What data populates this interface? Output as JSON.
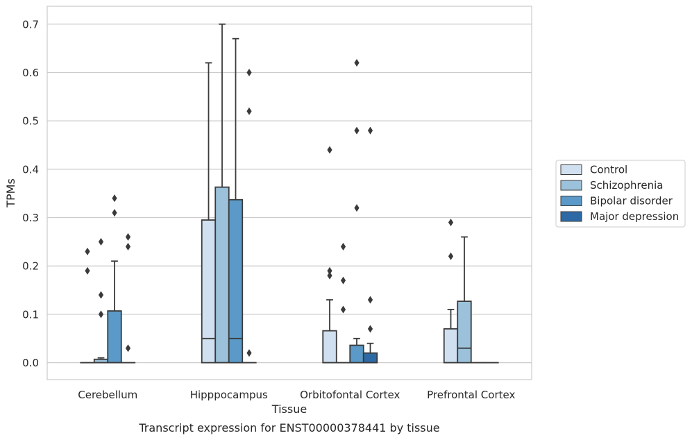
{
  "caption": "Transcript expression for ENST00000378441 by tissue",
  "chart_data": {
    "type": "box",
    "xlabel": "Tissue",
    "ylabel": "TPMs",
    "ylim": [
      -0.035,
      0.737
    ],
    "yticks": [
      0.0,
      0.1,
      0.2,
      0.3,
      0.4,
      0.5,
      0.6,
      0.7
    ],
    "ytick_labels": [
      "0.0",
      "0.1",
      "0.2",
      "0.3",
      "0.4",
      "0.5",
      "0.6",
      "0.7"
    ],
    "grid": "horizontal",
    "legend_position": "right",
    "categories": [
      "Cerebellum",
      "Hipppocampus",
      "Orbitofontal Cortex",
      "Prefrontal Cortex"
    ],
    "series": [
      {
        "name": "Control",
        "color": "#d0e0f0",
        "boxes": [
          {
            "q1": 0,
            "median": 0,
            "q3": 0,
            "whisker_low": 0,
            "whisker_high": 0,
            "outliers": [
              0.19,
              0.23
            ]
          },
          {
            "q1": 0,
            "median": 0.05,
            "q3": 0.295,
            "whisker_low": 0,
            "whisker_high": 0.62,
            "outliers": []
          },
          {
            "q1": 0,
            "median": 0,
            "q3": 0.066,
            "whisker_low": 0,
            "whisker_high": 0.13,
            "outliers": [
              0.18,
              0.19,
              0.44
            ]
          },
          {
            "q1": 0,
            "median": 0,
            "q3": 0.07,
            "whisker_low": 0,
            "whisker_high": 0.11,
            "outliers": [
              0.22,
              0.29
            ]
          }
        ]
      },
      {
        "name": "Schizophrenia",
        "color": "#9cc2db",
        "boxes": [
          {
            "q1": 0,
            "median": 0,
            "q3": 0.007,
            "whisker_low": 0,
            "whisker_high": 0.01,
            "outliers": [
              0.1,
              0.14,
              0.25
            ]
          },
          {
            "q1": 0,
            "median": 0,
            "q3": 0.363,
            "whisker_low": 0,
            "whisker_high": 0.7,
            "outliers": []
          },
          {
            "q1": 0,
            "median": 0,
            "q3": 0,
            "whisker_low": 0,
            "whisker_high": 0,
            "outliers": [
              0.11,
              0.17,
              0.24
            ]
          },
          {
            "q1": 0,
            "median": 0.03,
            "q3": 0.127,
            "whisker_low": 0,
            "whisker_high": 0.26,
            "outliers": []
          }
        ]
      },
      {
        "name": "Bipolar disorder",
        "color": "#5b9ac8",
        "boxes": [
          {
            "q1": 0,
            "median": 0,
            "q3": 0.107,
            "whisker_low": 0,
            "whisker_high": 0.21,
            "outliers": [
              0.31,
              0.34
            ]
          },
          {
            "q1": 0,
            "median": 0.05,
            "q3": 0.337,
            "whisker_low": 0,
            "whisker_high": 0.67,
            "outliers": []
          },
          {
            "q1": 0,
            "median": 0,
            "q3": 0.036,
            "whisker_low": 0,
            "whisker_high": 0.05,
            "outliers": [
              0.32,
              0.48,
              0.62
            ]
          },
          {
            "q1": 0,
            "median": 0,
            "q3": 0,
            "whisker_low": 0,
            "whisker_high": 0,
            "outliers": []
          }
        ]
      },
      {
        "name": "Major depression",
        "color": "#2d6aa5",
        "boxes": [
          {
            "q1": 0,
            "median": 0,
            "q3": 0,
            "whisker_low": 0,
            "whisker_high": 0,
            "outliers": [
              0.03,
              0.24,
              0.26
            ]
          },
          {
            "q1": 0,
            "median": 0,
            "q3": 0,
            "whisker_low": 0,
            "whisker_high": 0,
            "outliers": [
              0.02,
              0.52,
              0.6
            ]
          },
          {
            "q1": 0,
            "median": 0,
            "q3": 0.02,
            "whisker_low": 0,
            "whisker_high": 0.04,
            "outliers": [
              0.07,
              0.13,
              0.48
            ]
          },
          {
            "q1": 0,
            "median": 0,
            "q3": 0,
            "whisker_low": 0,
            "whisker_high": 0,
            "outliers": []
          }
        ]
      }
    ]
  }
}
